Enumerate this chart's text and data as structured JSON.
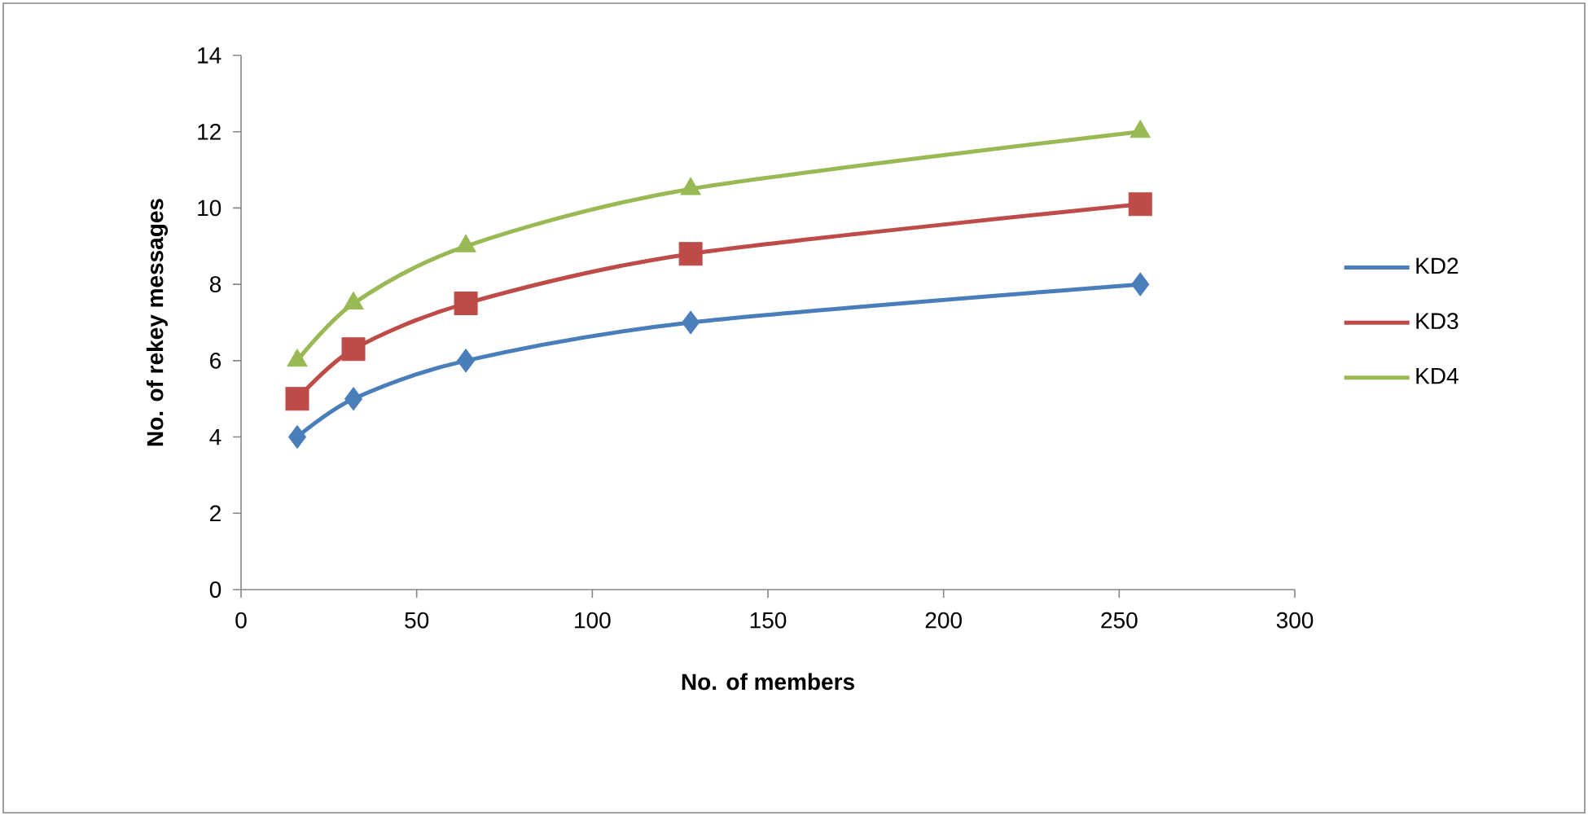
{
  "chart_data": {
    "type": "line",
    "xlabel": "No. of members",
    "ylabel": "No. of rekey messages",
    "x": [
      16,
      32,
      64,
      128,
      256
    ],
    "series": [
      {
        "name": "KD2",
        "color": "#4a7ebb",
        "marker": "diamond",
        "values": [
          4,
          5,
          6,
          7,
          8
        ]
      },
      {
        "name": "KD3",
        "color": "#be4b48",
        "marker": "square",
        "values": [
          5,
          6.3,
          7.5,
          8.8,
          10.1
        ]
      },
      {
        "name": "KD4",
        "color": "#98b954",
        "marker": "triangle",
        "values": [
          6,
          7.5,
          9,
          10.5,
          12
        ]
      }
    ],
    "xlim": [
      0,
      300
    ],
    "ylim": [
      0,
      14
    ],
    "xticks": [
      0,
      50,
      100,
      150,
      200,
      250,
      300
    ],
    "yticks": [
      0,
      2,
      4,
      6,
      8,
      10,
      12,
      14
    ],
    "legend": "right",
    "line_style": "solid"
  }
}
